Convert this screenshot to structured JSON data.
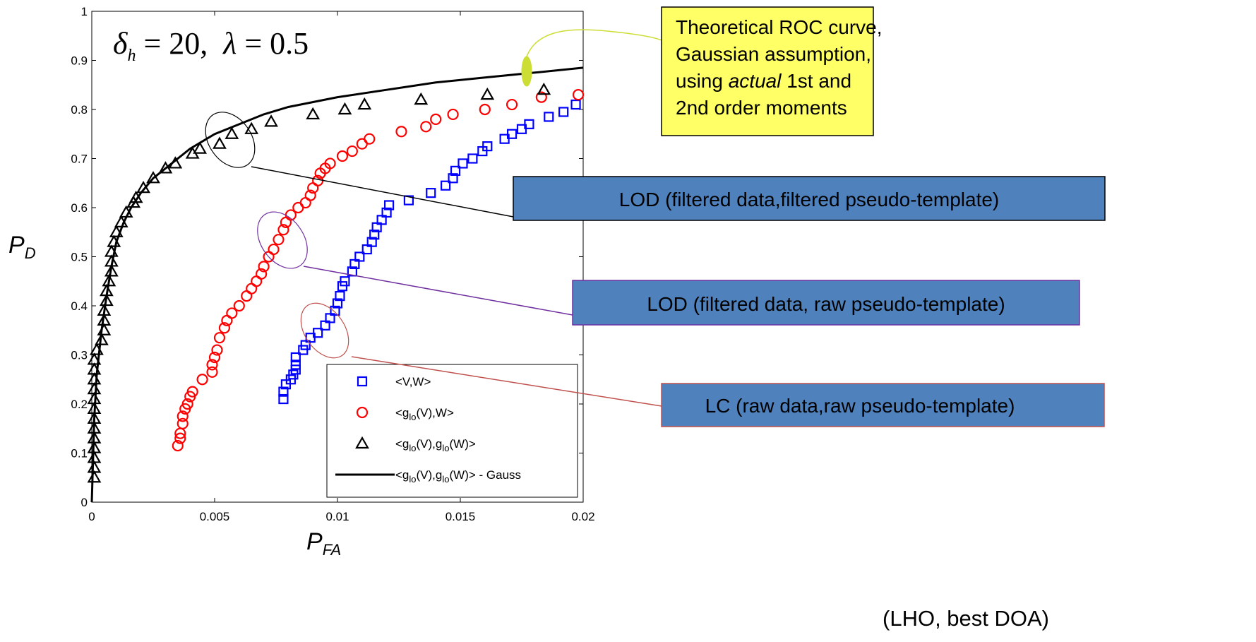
{
  "chart_data": {
    "type": "scatter",
    "title": "",
    "parameters_text": {
      "symbol_1": "δ",
      "subscript_1": "h",
      "value_1": " = 20,  ",
      "symbol_2": "λ",
      "value_2": " = 0.5"
    },
    "xlabel": {
      "main": "P",
      "sub": "FA"
    },
    "ylabel": {
      "main": "P",
      "sub": "D"
    },
    "xlim": [
      0,
      0.02
    ],
    "ylim": [
      0,
      1
    ],
    "xticks": [
      "0",
      "0.005",
      "0.01",
      "0.015",
      "0.02"
    ],
    "yticks": [
      "0",
      "0.1",
      "0.2",
      "0.3",
      "0.4",
      "0.5",
      "0.6",
      "0.7",
      "0.8",
      "0.9",
      "1"
    ],
    "legend": {
      "placement": "bottom-right",
      "entries": [
        {
          "marker": "square",
          "color": "#0000ff",
          "parts": [
            {
              "t": "<V,W>",
              "s": false
            }
          ]
        },
        {
          "marker": "circle",
          "color": "#ff0000",
          "parts": [
            {
              "t": "<g",
              "s": false
            },
            {
              "t": "lo",
              "s": true
            },
            {
              "t": "(V),W>",
              "s": false
            }
          ]
        },
        {
          "marker": "triangle",
          "color": "#000000",
          "parts": [
            {
              "t": "<g",
              "s": false
            },
            {
              "t": "lo",
              "s": true
            },
            {
              "t": "(V),g",
              "s": false
            },
            {
              "t": "lo",
              "s": true
            },
            {
              "t": "(W)>",
              "s": false
            }
          ]
        },
        {
          "marker": "line",
          "color": "#000000",
          "parts": [
            {
              "t": "<g",
              "s": false
            },
            {
              "t": "lo",
              "s": true
            },
            {
              "t": "(V),g",
              "s": false
            },
            {
              "t": "lo",
              "s": true
            },
            {
              "t": "(W)> - Gauss",
              "s": false
            }
          ]
        }
      ]
    },
    "series": [
      {
        "marker": "square",
        "color": "#0000ff",
        "points": [
          [
            0.0078,
            0.21
          ],
          [
            0.0078,
            0.225
          ],
          [
            0.0079,
            0.24
          ],
          [
            0.0081,
            0.25
          ],
          [
            0.0082,
            0.26
          ],
          [
            0.0083,
            0.27
          ],
          [
            0.0083,
            0.28
          ],
          [
            0.0083,
            0.295
          ],
          [
            0.0086,
            0.31
          ],
          [
            0.0087,
            0.32
          ],
          [
            0.0089,
            0.335
          ],
          [
            0.0092,
            0.345
          ],
          [
            0.0095,
            0.36
          ],
          [
            0.0097,
            0.375
          ],
          [
            0.0099,
            0.39
          ],
          [
            0.01,
            0.405
          ],
          [
            0.0101,
            0.42
          ],
          [
            0.0102,
            0.44
          ],
          [
            0.0103,
            0.45
          ],
          [
            0.0106,
            0.47
          ],
          [
            0.0107,
            0.485
          ],
          [
            0.0109,
            0.5
          ],
          [
            0.0112,
            0.515
          ],
          [
            0.0114,
            0.53
          ],
          [
            0.0115,
            0.545
          ],
          [
            0.0116,
            0.56
          ],
          [
            0.0118,
            0.575
          ],
          [
            0.012,
            0.59
          ],
          [
            0.0121,
            0.605
          ],
          [
            0.0129,
            0.615
          ],
          [
            0.0138,
            0.63
          ],
          [
            0.0144,
            0.645
          ],
          [
            0.0147,
            0.66
          ],
          [
            0.0148,
            0.675
          ],
          [
            0.0151,
            0.69
          ],
          [
            0.0155,
            0.7
          ],
          [
            0.0159,
            0.715
          ],
          [
            0.0161,
            0.725
          ],
          [
            0.0168,
            0.74
          ],
          [
            0.0171,
            0.75
          ],
          [
            0.0175,
            0.76
          ],
          [
            0.0178,
            0.77
          ],
          [
            0.0186,
            0.785
          ],
          [
            0.0192,
            0.795
          ],
          [
            0.0197,
            0.81
          ]
        ]
      },
      {
        "marker": "circle",
        "color": "#ff0000",
        "points": [
          [
            0.0035,
            0.115
          ],
          [
            0.0036,
            0.13
          ],
          [
            0.0036,
            0.14
          ],
          [
            0.0037,
            0.16
          ],
          [
            0.0037,
            0.175
          ],
          [
            0.0038,
            0.19
          ],
          [
            0.0039,
            0.2
          ],
          [
            0.004,
            0.215
          ],
          [
            0.0041,
            0.225
          ],
          [
            0.0045,
            0.25
          ],
          [
            0.0049,
            0.265
          ],
          [
            0.0049,
            0.28
          ],
          [
            0.005,
            0.295
          ],
          [
            0.0051,
            0.31
          ],
          [
            0.0052,
            0.335
          ],
          [
            0.0054,
            0.355
          ],
          [
            0.0055,
            0.37
          ],
          [
            0.0057,
            0.385
          ],
          [
            0.006,
            0.4
          ],
          [
            0.0063,
            0.42
          ],
          [
            0.0065,
            0.435
          ],
          [
            0.0067,
            0.45
          ],
          [
            0.0069,
            0.465
          ],
          [
            0.007,
            0.48
          ],
          [
            0.0072,
            0.5
          ],
          [
            0.0074,
            0.515
          ],
          [
            0.0076,
            0.535
          ],
          [
            0.0078,
            0.555
          ],
          [
            0.0079,
            0.57
          ],
          [
            0.0081,
            0.585
          ],
          [
            0.0084,
            0.6
          ],
          [
            0.0087,
            0.61
          ],
          [
            0.0089,
            0.625
          ],
          [
            0.009,
            0.64
          ],
          [
            0.0092,
            0.655
          ],
          [
            0.0093,
            0.67
          ],
          [
            0.0095,
            0.68
          ],
          [
            0.0097,
            0.69
          ],
          [
            0.0102,
            0.705
          ],
          [
            0.0106,
            0.715
          ],
          [
            0.011,
            0.73
          ],
          [
            0.0113,
            0.74
          ],
          [
            0.0126,
            0.755
          ],
          [
            0.0136,
            0.765
          ],
          [
            0.014,
            0.78
          ],
          [
            0.0147,
            0.79
          ],
          [
            0.016,
            0.8
          ],
          [
            0.0171,
            0.81
          ],
          [
            0.0183,
            0.825
          ],
          [
            0.0198,
            0.83
          ]
        ]
      },
      {
        "marker": "triangle",
        "color": "#000000",
        "points": [
          [
            0.0001,
            0.05
          ],
          [
            0.0001,
            0.07
          ],
          [
            0.0001,
            0.09
          ],
          [
            0.0001,
            0.11
          ],
          [
            0.0001,
            0.13
          ],
          [
            0.0001,
            0.15
          ],
          [
            0.0001,
            0.17
          ],
          [
            0.0001,
            0.19
          ],
          [
            0.0001,
            0.21
          ],
          [
            0.0001,
            0.23
          ],
          [
            0.0001,
            0.25
          ],
          [
            0.0001,
            0.27
          ],
          [
            0.0001,
            0.29
          ],
          [
            0.0002,
            0.31
          ],
          [
            0.0004,
            0.33
          ],
          [
            0.0005,
            0.35
          ],
          [
            0.0005,
            0.37
          ],
          [
            0.0005,
            0.39
          ],
          [
            0.0006,
            0.41
          ],
          [
            0.0006,
            0.43
          ],
          [
            0.0007,
            0.45
          ],
          [
            0.0008,
            0.47
          ],
          [
            0.0008,
            0.49
          ],
          [
            0.0008,
            0.51
          ],
          [
            0.0009,
            0.53
          ],
          [
            0.001,
            0.55
          ],
          [
            0.0012,
            0.57
          ],
          [
            0.0014,
            0.59
          ],
          [
            0.0017,
            0.61
          ],
          [
            0.0018,
            0.62
          ],
          [
            0.0021,
            0.64
          ],
          [
            0.0025,
            0.66
          ],
          [
            0.003,
            0.68
          ],
          [
            0.0034,
            0.69
          ],
          [
            0.0041,
            0.71
          ],
          [
            0.0044,
            0.72
          ],
          [
            0.0052,
            0.73
          ],
          [
            0.0057,
            0.75
          ],
          [
            0.0065,
            0.76
          ],
          [
            0.0073,
            0.775
          ],
          [
            0.009,
            0.79
          ],
          [
            0.0103,
            0.8
          ],
          [
            0.0111,
            0.81
          ],
          [
            0.0134,
            0.82
          ],
          [
            0.0161,
            0.83
          ],
          [
            0.0184,
            0.84
          ]
        ]
      },
      {
        "marker": "line",
        "color": "#000000",
        "points": [
          [
            0,
            0.0
          ],
          [
            0.0001,
            0.17
          ],
          [
            0.0002,
            0.26
          ],
          [
            0.0004,
            0.35
          ],
          [
            0.0006,
            0.42
          ],
          [
            0.0008,
            0.48
          ],
          [
            0.001,
            0.53
          ],
          [
            0.0013,
            0.57
          ],
          [
            0.0016,
            0.6
          ],
          [
            0.002,
            0.63
          ],
          [
            0.0025,
            0.66
          ],
          [
            0.003,
            0.68
          ],
          [
            0.004,
            0.72
          ],
          [
            0.005,
            0.75
          ],
          [
            0.006,
            0.77
          ],
          [
            0.007,
            0.79
          ],
          [
            0.008,
            0.805
          ],
          [
            0.01,
            0.825
          ],
          [
            0.012,
            0.84
          ],
          [
            0.014,
            0.855
          ],
          [
            0.016,
            0.865
          ],
          [
            0.018,
            0.875
          ],
          [
            0.02,
            0.885
          ]
        ]
      }
    ],
    "annotations": [
      {
        "kind": "box",
        "text_lines": [
          "LOD (filtered data,filtered pseudo-template)"
        ],
        "fill": "#4f81bd",
        "stroke": "#000000"
      },
      {
        "kind": "box",
        "text_lines": [
          "LOD (filtered data, raw pseudo-template)"
        ],
        "fill": "#4f81bd",
        "stroke": "#7030a0"
      },
      {
        "kind": "box",
        "text_lines": [
          "LC (raw data,raw pseudo-template)"
        ],
        "fill": "#4f81bd",
        "stroke": "#c0504d"
      },
      {
        "kind": "box",
        "text_lines": [
          "Theoretical ROC curve,",
          "Gaussian assumption,",
          "using  *actual* 1st and",
          "2nd order moments"
        ],
        "fill": "#ffff66",
        "stroke": "#000000"
      }
    ],
    "caption": "(LHO, best DOA)"
  }
}
